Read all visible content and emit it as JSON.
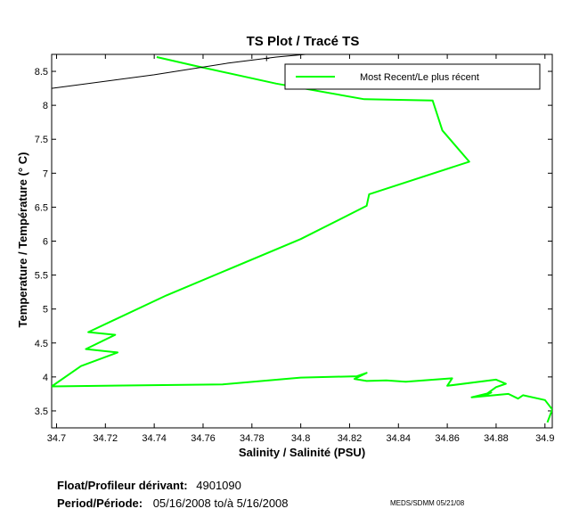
{
  "chart_data": {
    "type": "line",
    "title": "TS Plot / Tracé TS",
    "xlabel": "Salinity / Salinité (PSU)",
    "ylabel": "Temperature / Température (° C)",
    "xlim": [
      34.698,
      34.903
    ],
    "ylim": [
      3.25,
      8.75
    ],
    "xticks": [
      "34.7",
      "34.72",
      "34.74",
      "34.76",
      "34.78",
      "34.8",
      "34.82",
      "34.84",
      "34.86",
      "34.88",
      "34.9"
    ],
    "xtick_values": [
      34.7,
      34.72,
      34.74,
      34.76,
      34.78,
      34.8,
      34.82,
      34.84,
      34.86,
      34.88,
      34.9
    ],
    "yticks": [
      "3.5",
      "4",
      "4.5",
      "5",
      "5.5",
      "6",
      "6.5",
      "7",
      "7.5",
      "8",
      "8.5"
    ],
    "ytick_values": [
      3.5,
      4,
      4.5,
      5,
      5.5,
      6,
      6.5,
      7,
      7.5,
      8,
      8.5
    ],
    "legend_position": "top-right",
    "series": [
      {
        "name": "Most Recent/Le plus récent",
        "color": "#00ff00",
        "x": [
          34.741,
          34.757,
          34.79,
          34.826,
          34.854,
          34.858,
          34.869,
          34.828,
          34.827,
          34.8,
          34.745,
          34.713,
          34.724,
          34.712,
          34.725,
          34.71,
          34.698,
          34.768,
          34.8,
          34.823,
          34.827,
          34.822,
          34.827,
          34.835,
          34.843,
          34.862,
          34.86,
          34.88,
          34.884,
          34.88,
          34.875,
          34.878,
          34.87,
          34.885,
          34.889,
          34.891,
          34.9,
          34.903,
          34.901
        ],
        "y": [
          8.71,
          8.58,
          8.32,
          8.09,
          8.07,
          7.63,
          7.17,
          6.69,
          6.52,
          6.03,
          5.2,
          4.66,
          4.62,
          4.41,
          4.36,
          4.16,
          3.86,
          3.89,
          3.99,
          4.01,
          4.06,
          3.97,
          3.94,
          3.95,
          3.93,
          3.98,
          3.87,
          3.96,
          3.9,
          3.85,
          3.72,
          3.77,
          3.7,
          3.75,
          3.68,
          3.73,
          3.66,
          3.52,
          3.33
        ]
      },
      {
        "color": "#000000",
        "x": [
          34.698,
          34.74,
          34.77,
          34.79,
          34.802
        ],
        "y": [
          8.25,
          8.45,
          8.62,
          8.71,
          8.75
        ]
      }
    ]
  },
  "footer": {
    "float_label": "Float/Profileur dérivant:",
    "float_value": "4901090",
    "period_label": "Period/Période:",
    "period_value": "05/16/2008  to/à  5/16/2008",
    "credit": "MEDS/SDMM  05/21/08"
  }
}
